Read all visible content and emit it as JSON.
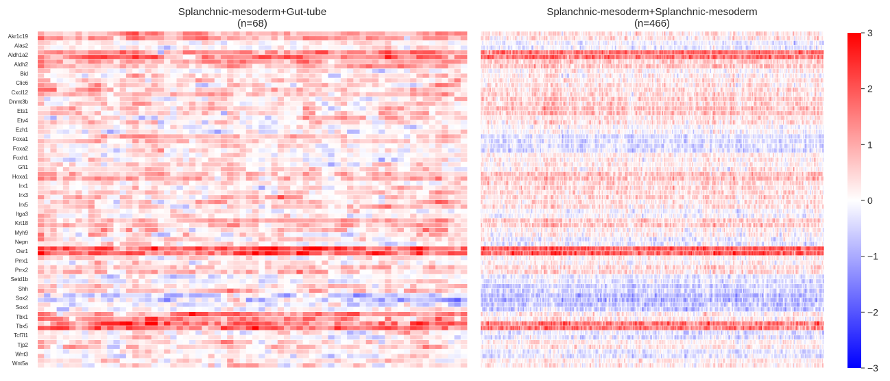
{
  "chart_data": [
    {
      "type": "heatmap",
      "title": "Splanchnic-mesoderm+Gut-tube",
      "subtitle": "(n=68)",
      "n_columns": 68,
      "genes": [
        "Akr1c19",
        "Alas2",
        "Aldh1a2",
        "Aldh2",
        "Bid",
        "Clic6",
        "Cxcl12",
        "Dnmt3b",
        "Ets1",
        "Etv4",
        "Ezh1",
        "Foxa1",
        "Foxa2",
        "Foxh1",
        "Gfi1",
        "Hoxa1",
        "Irx1",
        "Irx3",
        "Irx5",
        "Itga3",
        "Krt18",
        "Myh9",
        "Nepn",
        "Osr1",
        "Prrx1",
        "Prrx2",
        "Setd1b",
        "Shh",
        "Sox2",
        "Sox4",
        "Tbx1",
        "Tbx5",
        "Tcf7l1",
        "Tjp2",
        "Wnt3",
        "Wnt5a"
      ],
      "sub_rows_per_gene": 2,
      "gene_mean": [
        1.1,
        0.1,
        1.4,
        0.9,
        0.2,
        0.4,
        0.6,
        0.3,
        0.5,
        0.2,
        0.0,
        0.5,
        0.2,
        0.1,
        0.3,
        0.8,
        0.3,
        0.5,
        0.6,
        0.1,
        0.8,
        0.4,
        0.2,
        1.9,
        0.2,
        0.6,
        -0.1,
        0.5,
        -0.4,
        -0.1,
        1.2,
        1.8,
        0.1,
        0.4,
        0.0,
        0.3
      ],
      "gene_spread": [
        0.7,
        0.6,
        0.8,
        0.6,
        0.6,
        0.7,
        0.7,
        0.6,
        0.7,
        0.8,
        0.6,
        0.6,
        0.6,
        0.6,
        0.7,
        0.7,
        0.6,
        0.7,
        0.7,
        0.6,
        0.6,
        0.8,
        0.7,
        0.9,
        0.6,
        0.7,
        0.6,
        0.6,
        0.8,
        0.7,
        0.9,
        1.0,
        0.7,
        0.6,
        0.6,
        0.6
      ],
      "value_range": [
        -3,
        3
      ]
    },
    {
      "type": "heatmap",
      "title": "Splanchnic-mesoderm+Splanchnic-mesoderm",
      "subtitle": "(n=466)",
      "n_columns": 466,
      "genes": [
        "Akr1c19",
        "Alas2",
        "Aldh1a2",
        "Aldh2",
        "Bid",
        "Clic6",
        "Cxcl12",
        "Dnmt3b",
        "Ets1",
        "Etv4",
        "Ezh1",
        "Foxa1",
        "Foxa2",
        "Foxh1",
        "Gfi1",
        "Hoxa1",
        "Irx1",
        "Irx3",
        "Irx5",
        "Itga3",
        "Krt18",
        "Myh9",
        "Nepn",
        "Osr1",
        "Prrx1",
        "Prrx2",
        "Setd1b",
        "Shh",
        "Sox2",
        "Sox4",
        "Tbx1",
        "Tbx5",
        "Tcf7l1",
        "Tjp2",
        "Wnt3",
        "Wnt5a"
      ],
      "sub_rows_per_gene": 2,
      "gene_mean": [
        0.3,
        -0.2,
        1.6,
        0.6,
        0.1,
        0.3,
        0.4,
        0.5,
        0.7,
        0.3,
        0.0,
        -0.4,
        -0.4,
        0.2,
        0.2,
        0.7,
        0.4,
        0.4,
        0.3,
        -0.1,
        0.6,
        0.1,
        -0.2,
        1.9,
        0.1,
        0.4,
        -0.3,
        -0.5,
        -0.8,
        -0.6,
        0.2,
        1.5,
        -0.3,
        0.2,
        -0.3,
        0.2
      ],
      "gene_spread": [
        0.5,
        0.4,
        0.6,
        0.5,
        0.5,
        0.5,
        0.5,
        0.5,
        0.5,
        0.5,
        0.4,
        0.4,
        0.4,
        0.4,
        0.5,
        0.5,
        0.5,
        0.5,
        0.5,
        0.4,
        0.5,
        0.5,
        0.5,
        0.6,
        0.4,
        0.5,
        0.4,
        0.4,
        0.5,
        0.5,
        0.5,
        0.7,
        0.5,
        0.4,
        0.4,
        0.4
      ],
      "value_range": [
        -3,
        3
      ]
    }
  ],
  "colorbar": {
    "colormap": "bwr",
    "min": -3,
    "max": 3,
    "ticks": [
      "3",
      "2",
      "1",
      "0",
      "−1",
      "−2",
      "−3"
    ],
    "tick_values": [
      3,
      2,
      1,
      0,
      -1,
      -2,
      -3
    ]
  },
  "colors": {
    "low": "#0000ff",
    "mid": "#ffffff",
    "high": "#ff0000",
    "row_gap": "#ffffff"
  }
}
